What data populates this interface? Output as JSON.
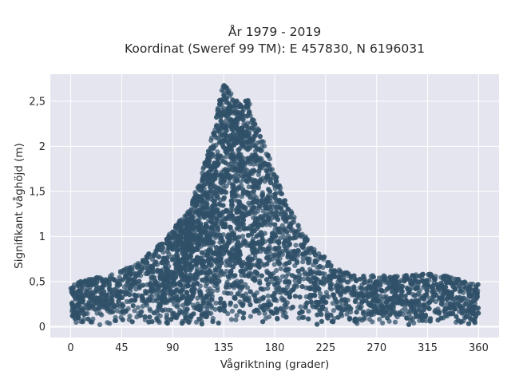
{
  "chart_data": {
    "type": "scatter",
    "title_line1": "År 1979 - 2019",
    "title_line2": "Koordinat (Sweref 99 TM): E 457830, N 6196031",
    "xlabel": "Vågriktning (grader)",
    "ylabel": "Signifikant våghöjd (m)",
    "xlim": [
      -18,
      378
    ],
    "ylim": [
      -0.12,
      2.8
    ],
    "x_ticks": [
      {
        "value": 0,
        "label": "0"
      },
      {
        "value": 45,
        "label": "45"
      },
      {
        "value": 90,
        "label": "90"
      },
      {
        "value": 135,
        "label": "135"
      },
      {
        "value": 180,
        "label": "180"
      },
      {
        "value": 225,
        "label": "225"
      },
      {
        "value": 270,
        "label": "270"
      },
      {
        "value": 315,
        "label": "315"
      },
      {
        "value": 360,
        "label": "360"
      }
    ],
    "y_ticks": [
      {
        "value": 0,
        "label": "0"
      },
      {
        "value": 0.5,
        "label": "0,5"
      },
      {
        "value": 1,
        "label": "1"
      },
      {
        "value": 1.5,
        "label": "1,5"
      },
      {
        "value": 2,
        "label": "2"
      },
      {
        "value": 2.5,
        "label": "2,5"
      }
    ],
    "grid": true,
    "plot_background": "#e5e5ef",
    "marker_color": "#2f5068",
    "envelope": {
      "direction": [
        0,
        20,
        45,
        60,
        75,
        90,
        105,
        115,
        125,
        130,
        135,
        140,
        145,
        150,
        155,
        160,
        170,
        180,
        190,
        200,
        210,
        225,
        240,
        255,
        270,
        285,
        300,
        315,
        330,
        345,
        360
      ],
      "max_height": [
        0.45,
        0.52,
        0.6,
        0.7,
        0.85,
        1.05,
        1.3,
        1.65,
        2.1,
        2.45,
        2.68,
        2.6,
        2.5,
        2.45,
        2.6,
        2.35,
        2.05,
        1.7,
        1.35,
        1.15,
        0.95,
        0.75,
        0.6,
        0.55,
        0.55,
        0.55,
        0.55,
        0.58,
        0.55,
        0.5,
        0.45
      ]
    }
  }
}
